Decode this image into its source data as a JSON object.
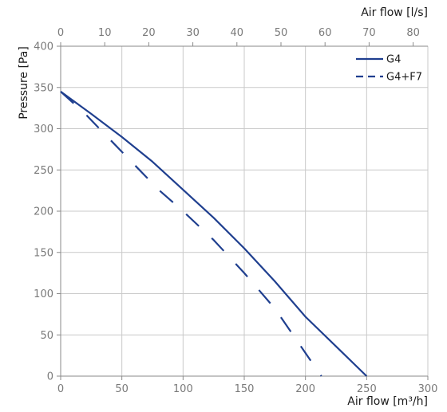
{
  "chart_data": {
    "type": "line",
    "xlabel": "Air flow [m³/h]",
    "x2label": "Air flow [l/s]",
    "ylabel": "Pressure [Pa]",
    "xlim": [
      0,
      300
    ],
    "x2lim": [
      0,
      83.333
    ],
    "ylim": [
      0,
      400
    ],
    "xticks": [
      0,
      50,
      100,
      150,
      200,
      250,
      300
    ],
    "x2ticks": [
      0,
      10,
      20,
      30,
      40,
      50,
      60,
      70,
      80
    ],
    "yticks": [
      0,
      50,
      100,
      150,
      200,
      250,
      300,
      350,
      400
    ],
    "grid": true,
    "legend_position": "top-right",
    "series": [
      {
        "name": "G4",
        "style": "solid",
        "color": "#1f3f8f",
        "x": [
          0,
          25,
          50,
          75,
          100,
          125,
          150,
          175,
          200,
          225,
          250
        ],
        "y": [
          345,
          318,
          290,
          260,
          226,
          192,
          155,
          115,
          72,
          36,
          0
        ]
      },
      {
        "name": "G4+F7",
        "style": "dashed",
        "color": "#1f3f8f",
        "x": [
          0,
          20,
          50,
          80,
          100,
          125,
          150,
          175,
          200,
          213
        ],
        "y": [
          345,
          318,
          272,
          226,
          200,
          165,
          125,
          82,
          28,
          0
        ]
      }
    ]
  }
}
